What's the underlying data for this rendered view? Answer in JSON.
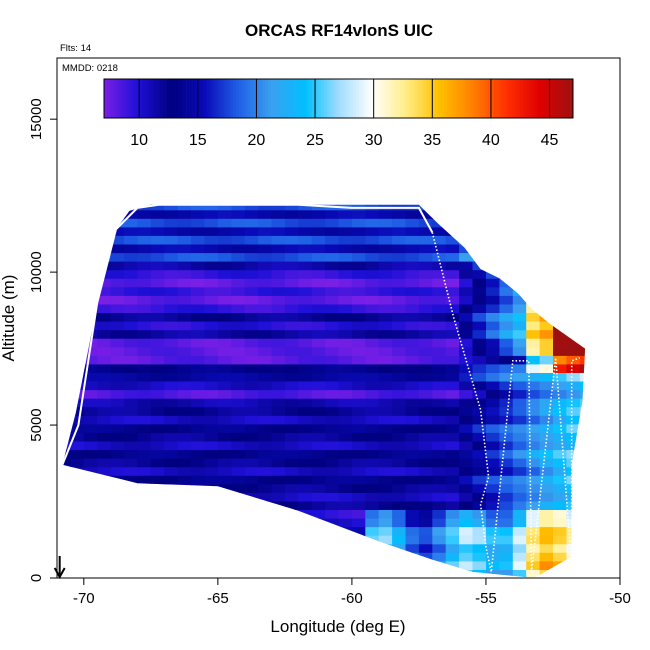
{
  "chart_data": {
    "type": "heatmap",
    "title": "ORCAS RF14vIonS UIC",
    "xlabel": "Longitude (deg E)",
    "ylabel": "Altitude (m)",
    "xlim": [
      -71,
      -50
    ],
    "ylim": [
      0,
      17000
    ],
    "x_ticks": [
      -70,
      -65,
      -60,
      -55,
      -50
    ],
    "x_tick_labels": [
      "-70",
      "-65",
      "-60",
      "-55",
      "-50"
    ],
    "y_ticks": [
      0,
      5000,
      10000,
      15000
    ],
    "y_tick_labels": [
      "0",
      "5000",
      "10000",
      "15000"
    ],
    "annotations": {
      "flights": "Flts: 14",
      "date": "MMDD: 0218"
    },
    "colorbar": {
      "range": [
        7,
        47
      ],
      "ticks": [
        10,
        15,
        20,
        25,
        30,
        35,
        40,
        45
      ],
      "tick_labels": [
        "10",
        "15",
        "20",
        "25",
        "30",
        "35",
        "40",
        "45"
      ],
      "colors": [
        "#7a1fe6",
        "#1f10d8",
        "#000080",
        "#0a0ab8",
        "#1f5fe6",
        "#3aa0f0",
        "#00bfff",
        "#9fdcff",
        "#ffffff",
        "#ffee88",
        "#ffc000",
        "#ff8000",
        "#ff3000",
        "#e00000",
        "#9e1010"
      ]
    },
    "field_polygon": [
      [
        -70.8,
        3700
      ],
      [
        -70.3,
        5400
      ],
      [
        -69.4,
        9400
      ],
      [
        -68.8,
        11400
      ],
      [
        -68.3,
        12000
      ],
      [
        -67.5,
        12200
      ],
      [
        -57.5,
        12200
      ],
      [
        -56.8,
        11600
      ],
      [
        -55.8,
        10800
      ],
      [
        -55.2,
        10100
      ],
      [
        -54.5,
        9800
      ],
      [
        -53.8,
        9300
      ],
      [
        -53.3,
        8800
      ],
      [
        -52.6,
        8300
      ],
      [
        -51.3,
        7500
      ],
      [
        -51.4,
        5800
      ],
      [
        -51.8,
        3700
      ],
      [
        -51.8,
        700
      ],
      [
        -53.2,
        0
      ],
      [
        -55.5,
        200
      ],
      [
        -57.0,
        600
      ],
      [
        -59.0,
        1200
      ],
      [
        -62.0,
        2200
      ],
      [
        -65.0,
        3000
      ],
      [
        -68.0,
        3100
      ]
    ],
    "flight_track": [
      [
        -70.8,
        3700
      ],
      [
        -70.2,
        5000
      ],
      [
        -69.5,
        9000
      ],
      [
        -68.8,
        11400
      ],
      [
        -68.0,
        12100
      ],
      [
        -67.2,
        12200
      ],
      [
        -62.0,
        12200
      ],
      [
        -60.0,
        12100
      ],
      [
        -57.5,
        12100
      ],
      [
        -57.0,
        11300
      ],
      [
        -56.2,
        8500
      ],
      [
        -55.2,
        5500
      ],
      [
        -54.9,
        3300
      ],
      [
        -55.2,
        2400
      ],
      [
        -55.0,
        1000
      ],
      [
        -54.8,
        200
      ],
      [
        -54.0,
        7100
      ],
      [
        -53.4,
        7100
      ],
      [
        -53.3,
        200
      ],
      [
        -52.4,
        7200
      ],
      [
        -51.8,
        400
      ],
      [
        -51.8,
        7100
      ],
      [
        -51.5,
        7200
      ]
    ],
    "track_solid_until_index": 9,
    "heading_arrow_x": -70.9
  }
}
